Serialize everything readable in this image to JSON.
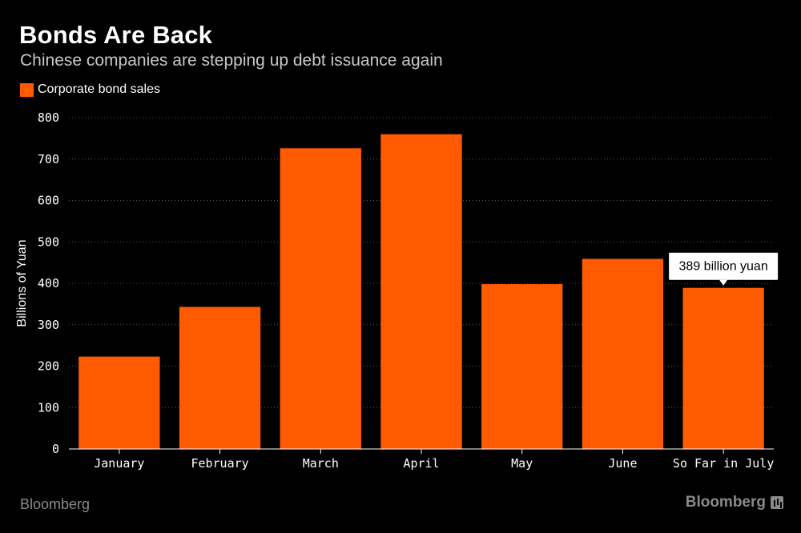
{
  "title": "Bonds Are Back",
  "subtitle": "Chinese companies are stepping up debt issuance again",
  "legend": {
    "label": "Corporate bond sales",
    "color": "#ff5a00"
  },
  "footer": {
    "source": "Bloomberg",
    "logo": "Bloomberg"
  },
  "chart_data": {
    "type": "bar",
    "categories": [
      "January",
      "February",
      "March",
      "April",
      "May",
      "June",
      "So Far in July"
    ],
    "series": [
      {
        "name": "Corporate bond sales",
        "values": [
          223,
          343,
          726,
          760,
          398,
          459,
          389
        ],
        "color": "#ff5a00"
      }
    ],
    "ylabel": "Billions of Yuan",
    "xlabel": "",
    "ylim": [
      0,
      800
    ],
    "yticks": [
      0,
      100,
      200,
      300,
      400,
      500,
      600,
      700,
      800
    ],
    "grid": true,
    "legend_position": "top-left",
    "annotations": [
      {
        "category": "So Far in July",
        "text": "389 billion yuan"
      }
    ]
  }
}
